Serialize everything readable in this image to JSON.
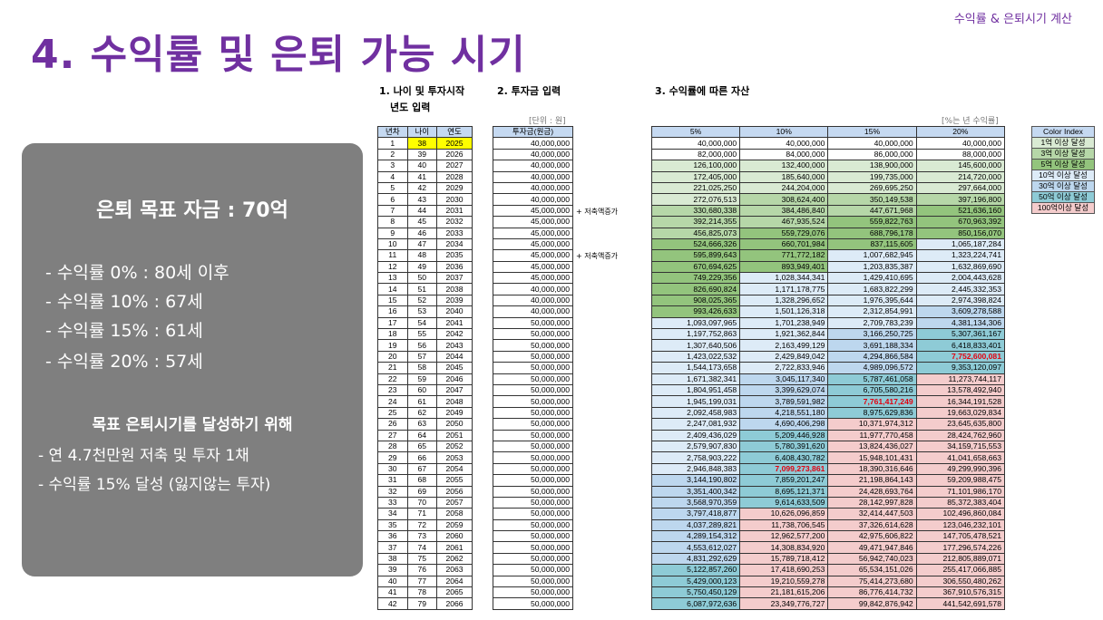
{
  "top_tag": "수익률 & 은퇴시기 계산",
  "title": "4. 수익률 및 은퇴 가능 시기",
  "panel": {
    "goal": "은퇴 목표 자금 : 70억",
    "rates": [
      "- 수익률   0% : 80세 이후",
      "- 수익률 10% : 67세",
      "- 수익률 15% : 61세",
      "- 수익률 20% : 57세"
    ],
    "subhead": "목표 은퇴시기를 달성하기 위해",
    "actions": [
      "- 연 4.7천만원 저축 및 투자 1채",
      "- 수익률 15% 달성 (잃지않는 투자)"
    ]
  },
  "sections": {
    "s1_line1": "1. 나이 및 투자시작",
    "s1_line2": "년도 입력",
    "s2": "2. 투자금 입력",
    "s3": "3. 수익률에 따른 자산",
    "unit_won": "[단위 : 원]",
    "unit_rate": "[%는 년 수익률]"
  },
  "table_a_headers": [
    "년차",
    "나이",
    "연도"
  ],
  "table_b_header": "투자금(원금)",
  "table_c_headers": [
    "5%",
    "10%",
    "15%",
    "20%"
  ],
  "annotations": [
    "저축액증가",
    "저축액증가"
  ],
  "rows": [
    [
      "1",
      "38",
      "2025",
      "40,000,000",
      "40,000,000",
      "40,000,000",
      "40,000,000",
      "40,000,000"
    ],
    [
      "2",
      "39",
      "2026",
      "40,000,000",
      "82,000,000",
      "84,000,000",
      "86,000,000",
      "88,000,000"
    ],
    [
      "3",
      "40",
      "2027",
      "40,000,000",
      "126,100,000",
      "132,400,000",
      "138,900,000",
      "145,600,000"
    ],
    [
      "4",
      "41",
      "2028",
      "40,000,000",
      "172,405,000",
      "185,640,000",
      "199,735,000",
      "214,720,000"
    ],
    [
      "5",
      "42",
      "2029",
      "40,000,000",
      "221,025,250",
      "244,204,000",
      "269,695,250",
      "297,664,000"
    ],
    [
      "6",
      "43",
      "2030",
      "40,000,000",
      "272,076,513",
      "308,624,400",
      "350,149,538",
      "397,196,800"
    ],
    [
      "7",
      "44",
      "2031",
      "45,000,000",
      "330,680,338",
      "384,486,840",
      "447,671,968",
      "521,636,160"
    ],
    [
      "8",
      "45",
      "2032",
      "45,000,000",
      "392,214,355",
      "467,935,524",
      "559,822,763",
      "670,963,392"
    ],
    [
      "9",
      "46",
      "2033",
      "45,000,000",
      "456,825,073",
      "559,729,076",
      "688,796,178",
      "850,156,070"
    ],
    [
      "10",
      "47",
      "2034",
      "45,000,000",
      "524,666,326",
      "660,701,984",
      "837,115,605",
      "1,065,187,284"
    ],
    [
      "11",
      "48",
      "2035",
      "45,000,000",
      "595,899,643",
      "771,772,182",
      "1,007,682,945",
      "1,323,224,741"
    ],
    [
      "12",
      "49",
      "2036",
      "45,000,000",
      "670,694,625",
      "893,949,401",
      "1,203,835,387",
      "1,632,869,690"
    ],
    [
      "13",
      "50",
      "2037",
      "45,000,000",
      "749,229,356",
      "1,028,344,341",
      "1,429,410,695",
      "2,004,443,628"
    ],
    [
      "14",
      "51",
      "2038",
      "40,000,000",
      "826,690,824",
      "1,171,178,775",
      "1,683,822,299",
      "2,445,332,353"
    ],
    [
      "15",
      "52",
      "2039",
      "40,000,000",
      "908,025,365",
      "1,328,296,652",
      "1,976,395,644",
      "2,974,398,824"
    ],
    [
      "16",
      "53",
      "2040",
      "40,000,000",
      "993,426,633",
      "1,501,126,318",
      "2,312,854,991",
      "3,609,278,588"
    ],
    [
      "17",
      "54",
      "2041",
      "50,000,000",
      "1,093,097,965",
      "1,701,238,949",
      "2,709,783,239",
      "4,381,134,306"
    ],
    [
      "18",
      "55",
      "2042",
      "50,000,000",
      "1,197,752,863",
      "1,921,362,844",
      "3,166,250,725",
      "5,307,361,167"
    ],
    [
      "19",
      "56",
      "2043",
      "50,000,000",
      "1,307,640,506",
      "2,163,499,129",
      "3,691,188,334",
      "6,418,833,401"
    ],
    [
      "20",
      "57",
      "2044",
      "50,000,000",
      "1,423,022,532",
      "2,429,849,042",
      "4,294,866,584",
      "7,752,600,081"
    ],
    [
      "21",
      "58",
      "2045",
      "50,000,000",
      "1,544,173,658",
      "2,722,833,946",
      "4,989,096,572",
      "9,353,120,097"
    ],
    [
      "22",
      "59",
      "2046",
      "50,000,000",
      "1,671,382,341",
      "3,045,117,340",
      "5,787,461,058",
      "11,273,744,117"
    ],
    [
      "23",
      "60",
      "2047",
      "50,000,000",
      "1,804,951,458",
      "3,399,629,074",
      "6,705,580,216",
      "13,578,492,940"
    ],
    [
      "24",
      "61",
      "2048",
      "50,000,000",
      "1,945,199,031",
      "3,789,591,982",
      "7,761,417,249",
      "16,344,191,528"
    ],
    [
      "25",
      "62",
      "2049",
      "50,000,000",
      "2,092,458,983",
      "4,218,551,180",
      "8,975,629,836",
      "19,663,029,834"
    ],
    [
      "26",
      "63",
      "2050",
      "50,000,000",
      "2,247,081,932",
      "4,690,406,298",
      "10,371,974,312",
      "23,645,635,800"
    ],
    [
      "27",
      "64",
      "2051",
      "50,000,000",
      "2,409,436,029",
      "5,209,446,928",
      "11,977,770,458",
      "28,424,762,960"
    ],
    [
      "28",
      "65",
      "2052",
      "50,000,000",
      "2,579,907,830",
      "5,780,391,620",
      "13,824,436,027",
      "34,159,715,553"
    ],
    [
      "29",
      "66",
      "2053",
      "50,000,000",
      "2,758,903,222",
      "6,408,430,782",
      "15,948,101,431",
      "41,041,658,663"
    ],
    [
      "30",
      "67",
      "2054",
      "50,000,000",
      "2,946,848,383",
      "7,099,273,861",
      "18,390,316,646",
      "49,299,990,396"
    ],
    [
      "31",
      "68",
      "2055",
      "50,000,000",
      "3,144,190,802",
      "7,859,201,247",
      "21,198,864,143",
      "59,209,988,475"
    ],
    [
      "32",
      "69",
      "2056",
      "50,000,000",
      "3,351,400,342",
      "8,695,121,371",
      "24,428,693,764",
      "71,101,986,170"
    ],
    [
      "33",
      "70",
      "2057",
      "50,000,000",
      "3,568,970,359",
      "9,614,633,509",
      "28,142,997,828",
      "85,372,383,404"
    ],
    [
      "34",
      "71",
      "2058",
      "50,000,000",
      "3,797,418,877",
      "10,626,096,859",
      "32,414,447,503",
      "102,496,860,084"
    ],
    [
      "35",
      "72",
      "2059",
      "50,000,000",
      "4,037,289,821",
      "11,738,706,545",
      "37,326,614,628",
      "123,046,232,101"
    ],
    [
      "36",
      "73",
      "2060",
      "50,000,000",
      "4,289,154,312",
      "12,962,577,200",
      "42,975,606,822",
      "147,705,478,521"
    ],
    [
      "37",
      "74",
      "2061",
      "50,000,000",
      "4,553,612,027",
      "14,308,834,920",
      "49,471,947,846",
      "177,296,574,226"
    ],
    [
      "38",
      "75",
      "2062",
      "50,000,000",
      "4,831,292,629",
      "15,789,718,412",
      "56,942,740,023",
      "212,805,889,071"
    ],
    [
      "39",
      "76",
      "2063",
      "50,000,000",
      "5,122,857,260",
      "17,418,690,253",
      "65,534,151,026",
      "255,417,066,885"
    ],
    [
      "40",
      "77",
      "2064",
      "50,000,000",
      "5,429,000,123",
      "19,210,559,278",
      "75,414,273,680",
      "306,550,480,262"
    ],
    [
      "41",
      "78",
      "2065",
      "50,000,000",
      "5,750,450,129",
      "21,181,615,206",
      "86,776,414,732",
      "367,910,576,315"
    ],
    [
      "42",
      "79",
      "2066",
      "50,000,000",
      "6,087,972,636",
      "23,349,776,727",
      "99,842,876,942",
      "441,542,691,578"
    ]
  ],
  "highlights": {
    "c1": 30,
    "c2": 24,
    "c3": 20
  },
  "legend": {
    "title": "Color Index",
    "items": [
      {
        "label": "1억 이상 달성",
        "color": "#d9ead3"
      },
      {
        "label": "3억 이상 달성",
        "color": "#b6d7a8"
      },
      {
        "label": "5억 이상 달성",
        "color": "#93c47d"
      },
      {
        "label": "10억 이상 달성",
        "color": "#ddebf7"
      },
      {
        "label": "30억 이상 달성",
        "color": "#bdd7ee"
      },
      {
        "label": "50억 이상 달성",
        "color": "#8ecbd6"
      },
      {
        "label": "100억이상 달성",
        "color": "#f4cccc"
      }
    ]
  },
  "colors": {
    "accent": "#7030a0",
    "header": "#c5d9f1",
    "yellow": "#ffff00",
    "red": "#e3000f"
  }
}
